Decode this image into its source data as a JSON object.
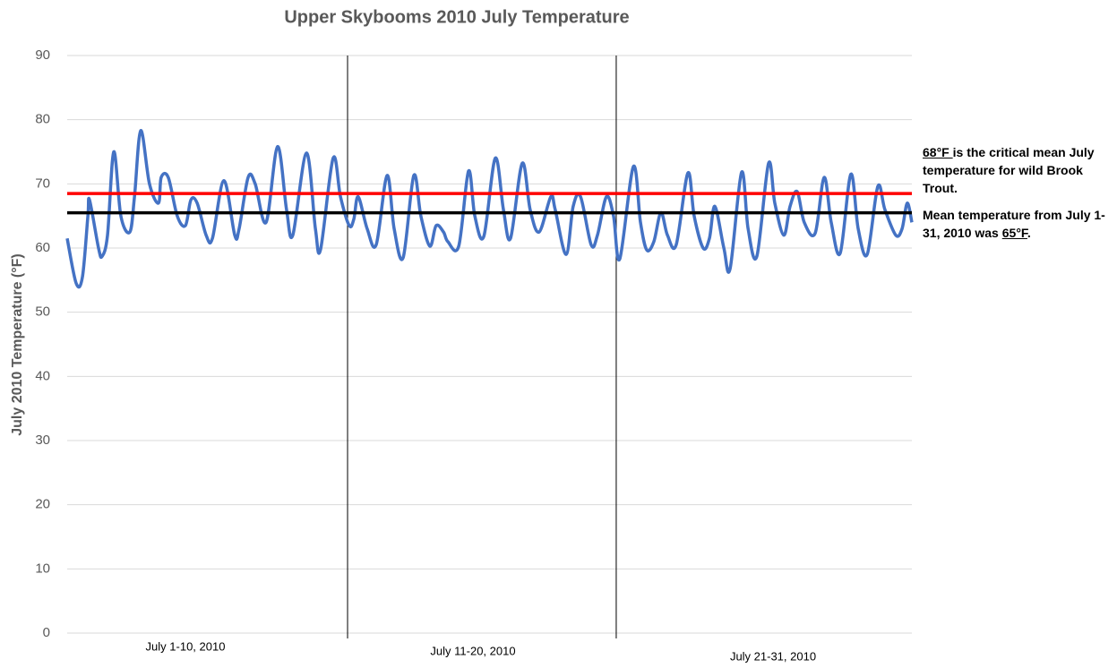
{
  "chart_data": {
    "type": "line",
    "title": "Upper Skybooms 2010 July Temperature",
    "y_label": "July 2010 Temperature (°F)",
    "ylim": [
      0,
      90
    ],
    "yticks": [
      0,
      10,
      20,
      30,
      40,
      50,
      60,
      70,
      80,
      90
    ],
    "grid": true,
    "xlim": [
      0,
      31
    ],
    "x_groups": [
      "July 1-10, 2010",
      "July 11-20, 2010",
      "July 21-31, 2010"
    ],
    "dividers": [
      10.29,
      20.15
    ],
    "reference_lines": [
      {
        "value": 68.5,
        "color": "#ff0000"
      },
      {
        "value": 65.5,
        "color": "#000000"
      }
    ],
    "series": [
      {
        "color": "#4472c4",
        "x": [
          0,
          0.33,
          0.56,
          0.76,
          0.82,
          1.15,
          1.28,
          1.48,
          1.71,
          1.97,
          2.3,
          2.47,
          2.7,
          3.02,
          3.35,
          3.45,
          3.71,
          4.04,
          4.34,
          4.54,
          4.77,
          5.1,
          5.33,
          5.75,
          6.15,
          6.31,
          6.64,
          6.9,
          7.3,
          7.72,
          8.05,
          8.28,
          8.78,
          9.11,
          9.3,
          9.76,
          10.03,
          10.35,
          10.52,
          10.68,
          11.01,
          11.34,
          11.74,
          12.0,
          12.33,
          12.72,
          12.98,
          13.31,
          13.54,
          13.81,
          13.97,
          14.37,
          14.73,
          14.96,
          15.29,
          15.71,
          16.01,
          16.27,
          16.7,
          16.99,
          17.32,
          17.75,
          17.91,
          18.31,
          18.57,
          18.84,
          19.23,
          19.46,
          19.79,
          20.05,
          20.28,
          20.78,
          21.04,
          21.27,
          21.53,
          21.79,
          22.03,
          22.35,
          22.78,
          23.01,
          23.34,
          23.57,
          23.77,
          24.1,
          24.33,
          24.75,
          24.99,
          25.31,
          25.74,
          25.97,
          26.3,
          26.53,
          26.79,
          27.05,
          27.45,
          27.78,
          28.04,
          28.37,
          28.76,
          29.03,
          29.36,
          29.75,
          30.01,
          30.41,
          30.64,
          30.83,
          31.0
        ],
        "values": [
          61.5,
          54.5,
          55.5,
          65,
          67.5,
          60,
          58.7,
          62,
          75,
          65,
          62.5,
          68,
          78.3,
          70,
          67,
          71,
          71,
          65,
          63.5,
          67.5,
          67,
          62,
          61.5,
          70.5,
          62,
          63,
          71,
          70,
          64,
          75.8,
          66,
          62,
          74.8,
          63,
          59.8,
          74,
          68,
          63.5,
          64.5,
          68,
          63,
          60.5,
          71.3,
          63,
          58.5,
          71.3,
          65,
          60.3,
          63.5,
          62.5,
          61,
          60.3,
          72,
          65,
          61.8,
          74,
          66,
          61.5,
          73.2,
          66,
          62.5,
          68,
          66,
          59,
          66.5,
          68,
          60.5,
          62,
          68,
          65,
          58.3,
          72.7,
          64,
          59.7,
          61,
          65.5,
          62,
          60.5,
          71.7,
          65,
          60,
          61.5,
          66.5,
          60,
          56.8,
          71.8,
          63,
          58.7,
          73.2,
          67,
          62,
          66.5,
          68.8,
          64,
          62.3,
          71,
          64,
          59.2,
          71.5,
          63,
          59,
          69.6,
          66,
          62,
          63,
          67,
          64
        ]
      }
    ],
    "annotations": [
      {
        "parts": [
          {
            "text": "68°F ",
            "underline": true
          },
          {
            "text": "is the critical mean July temperature for wild Brook Trout."
          }
        ]
      },
      {
        "parts": [
          {
            "text": "Mean temperature from July 1-31, 2010 was "
          },
          {
            "text": "65°F",
            "underline": true
          },
          {
            "text": "."
          }
        ]
      }
    ]
  }
}
